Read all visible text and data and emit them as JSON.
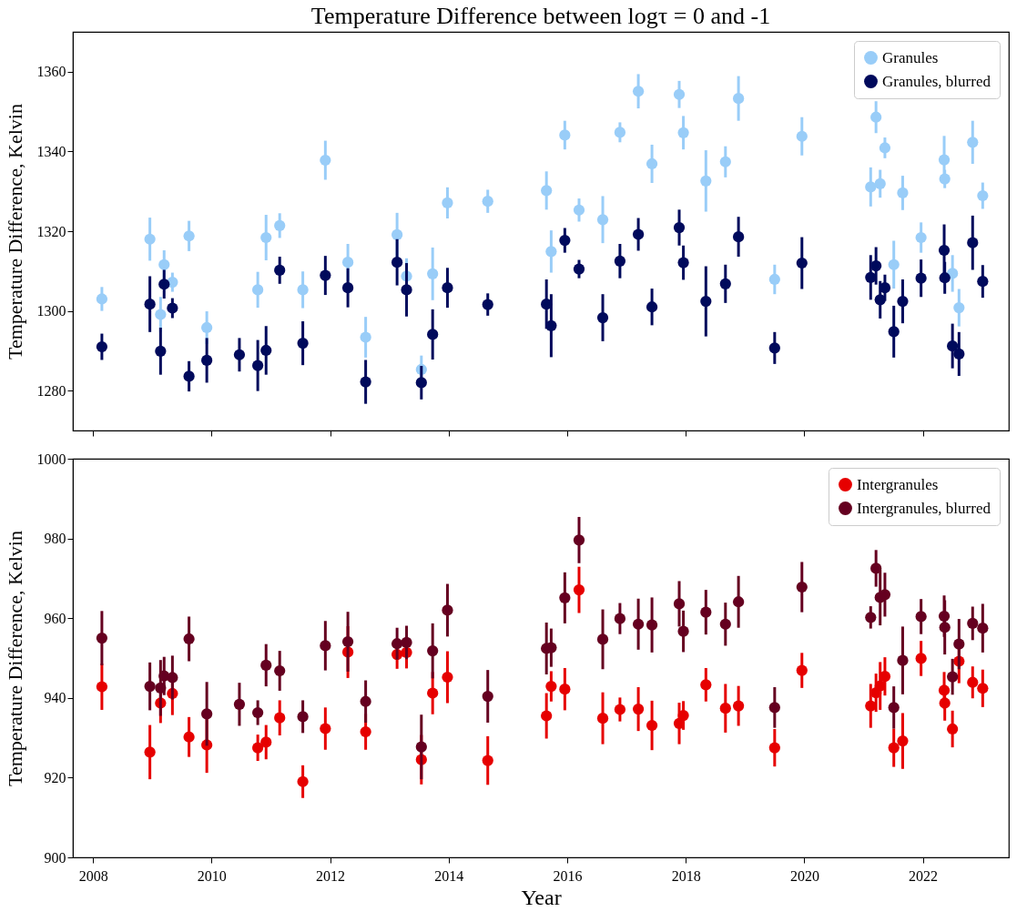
{
  "chart_data": [
    {
      "type": "scatter",
      "title": "Temperature Difference between logτ = 0 and -1",
      "ylabel": "Temperature Difference, Kelvin",
      "xlim": [
        2007.66,
        2023.45
      ],
      "xticks": [
        2008,
        2010,
        2012,
        2014,
        2016,
        2018,
        2020,
        2022
      ],
      "ylim": [
        1270,
        1370
      ],
      "yticks": [
        1280,
        1300,
        1320,
        1340,
        1360
      ],
      "tick_labels": "y",
      "grid": false,
      "legend": "top right",
      "marker": "circle",
      "series": [
        {
          "name": "Granules",
          "color": "#99cdf8",
          "x": [
            2008.15,
            2008.96,
            2009.14,
            2009.2,
            2009.34,
            2009.62,
            2009.92,
            2010.78,
            2010.92,
            2011.15,
            2011.54,
            2011.92,
            2012.3,
            2012.6,
            2013.13,
            2013.29,
            2013.54,
            2013.73,
            2013.98,
            2014.66,
            2015.65,
            2015.73,
            2015.96,
            2016.2,
            2016.6,
            2016.89,
            2017.2,
            2017.43,
            2017.89,
            2017.96,
            2018.34,
            2018.67,
            2018.89,
            2019.5,
            2019.96,
            2021.12,
            2021.21,
            2021.28,
            2021.36,
            2021.51,
            2021.66,
            2021.97,
            2022.36,
            2022.37,
            2022.5,
            2022.61,
            2022.84,
            2023.01
          ],
          "values": [
            1303,
            1318,
            1299.1,
            1311.6,
            1307.2,
            1318.8,
            1295.8,
            1305.3,
            1318.4,
            1321.4,
            1305.3,
            1337.8,
            1312.2,
            1293.4,
            1319.1,
            1308.7,
            1285.3,
            1309.3,
            1327.1,
            1327.5,
            1330.2,
            1314.9,
            1344.1,
            1325.3,
            1322.9,
            1344.8,
            1355.1,
            1336.9,
            1354.3,
            1344.7,
            1332.6,
            1337.4,
            1353.3,
            1307.9,
            1343.8,
            1331.1,
            1348.6,
            1331.9,
            1340.9,
            1311.6,
            1329.6,
            1318.4,
            1337.9,
            1333.1,
            1309.4,
            1300.8,
            1342.3,
            1328.9
          ],
          "errors": [
            3,
            5.4,
            4.4,
            3.6,
            2.4,
            3.8,
            4.1,
            4.5,
            5.7,
            3.1,
            4.6,
            4.9,
            4.6,
            5.1,
            5.5,
            4.5,
            3.5,
            6.6,
            3.9,
            2.9,
            4.8,
            5.3,
            3.6,
            2.9,
            5.9,
            2.5,
            4.3,
            4.8,
            3.4,
            4.2,
            7.7,
            3.9,
            5.6,
            3.7,
            4.8,
            4.9,
            4,
            3.5,
            2.6,
            6,
            4.3,
            3.8,
            6,
            2.3,
            4.6,
            4.7,
            5.4,
            3.3
          ]
        },
        {
          "name": "Granules, blurred",
          "color": "#000a5c",
          "x": [
            2008.15,
            2008.96,
            2009.14,
            2009.2,
            2009.34,
            2009.62,
            2009.92,
            2010.47,
            2010.78,
            2010.92,
            2011.15,
            2011.54,
            2011.92,
            2012.3,
            2012.6,
            2013.13,
            2013.29,
            2013.54,
            2013.73,
            2013.98,
            2014.66,
            2015.65,
            2015.73,
            2015.96,
            2016.2,
            2016.6,
            2016.89,
            2017.2,
            2017.43,
            2017.89,
            2017.96,
            2018.34,
            2018.67,
            2018.89,
            2019.5,
            2019.96,
            2021.12,
            2021.21,
            2021.28,
            2021.36,
            2021.51,
            2021.66,
            2021.97,
            2022.36,
            2022.37,
            2022.5,
            2022.61,
            2022.84,
            2023.01
          ],
          "values": [
            1291,
            1301.7,
            1289.9,
            1306.7,
            1300.7,
            1283.6,
            1287.6,
            1289,
            1286.3,
            1290.1,
            1310.2,
            1291.9,
            1308.9,
            1305.8,
            1282.2,
            1312.2,
            1305.3,
            1282,
            1294.1,
            1305.8,
            1301.6,
            1301.7,
            1296.3,
            1317.7,
            1310.5,
            1298.3,
            1312.5,
            1319.2,
            1301,
            1320.9,
            1312.1,
            1302.4,
            1306.8,
            1318.6,
            1290.7,
            1312,
            1308.4,
            1311.3,
            1302.8,
            1305.8,
            1294.8,
            1302.4,
            1308.2,
            1315.2,
            1308.3,
            1291.2,
            1289.2,
            1317.1,
            1307.4
          ],
          "errors": [
            3.3,
            7,
            5.9,
            3.6,
            2.5,
            3.8,
            5.6,
            4.2,
            6.4,
            6.1,
            3.4,
            5.5,
            4.9,
            4.9,
            5.5,
            5.8,
            6.7,
            4.2,
            6.3,
            5,
            2.8,
            6.2,
            7.9,
            3.1,
            2.3,
            5.9,
            4.3,
            4.1,
            4.6,
            4.5,
            4.3,
            8.8,
            4.8,
            5,
            4,
            6.5,
            5.6,
            4.7,
            4.7,
            3.3,
            6.5,
            5.5,
            4.7,
            6.5,
            4,
            5.6,
            5.5,
            6.8,
            4.1
          ]
        }
      ]
    },
    {
      "type": "scatter",
      "xlabel": "Year",
      "ylabel": "Temperature Difference, Kelvin",
      "xlim": [
        2007.66,
        2023.45
      ],
      "xticks": [
        2008,
        2010,
        2012,
        2014,
        2016,
        2018,
        2020,
        2022
      ],
      "ylim": [
        900,
        1000
      ],
      "yticks": [
        900,
        920,
        940,
        960,
        980,
        1000
      ],
      "grid": false,
      "legend": "top right",
      "marker": "circle",
      "series": [
        {
          "name": "Intergranules",
          "color": "#e60000",
          "x": [
            2008.15,
            2008.96,
            2009.14,
            2009.2,
            2009.34,
            2009.62,
            2009.92,
            2010.78,
            2010.92,
            2011.15,
            2011.54,
            2011.92,
            2012.3,
            2012.6,
            2013.13,
            2013.29,
            2013.54,
            2013.73,
            2013.98,
            2014.66,
            2015.65,
            2015.73,
            2015.96,
            2016.2,
            2016.6,
            2016.89,
            2017.2,
            2017.43,
            2017.89,
            2017.96,
            2018.34,
            2018.67,
            2018.89,
            2019.5,
            2019.96,
            2021.12,
            2021.21,
            2021.28,
            2021.36,
            2021.51,
            2021.66,
            2021.97,
            2022.36,
            2022.37,
            2022.5,
            2022.61,
            2022.84,
            2023.01
          ],
          "values": [
            942.8,
            926.4,
            938.7,
            null,
            941.1,
            930.2,
            928.2,
            927.5,
            928.9,
            935,
            919,
            932.3,
            951.5,
            931.5,
            950.9,
            951.4,
            924.5,
            941.2,
            945.2,
            924.3,
            935.5,
            942.9,
            942.2,
            967.1,
            934.9,
            937.1,
            937.2,
            933.1,
            933.6,
            935.6,
            943.3,
            937.4,
            938,
            927.5,
            946.9,
            938,
            941.3,
            943,
            945.4,
            927.5,
            929.2,
            949.9,
            941.9,
            938.7,
            932.2,
            949.2,
            943.9,
            942.4
          ],
          "errors": [
            5.8,
            6.8,
            5,
            null,
            5.4,
            5,
            7,
            3.3,
            4.3,
            4.4,
            4.1,
            5.3,
            6.5,
            4.5,
            3.6,
            4,
            6.2,
            5.3,
            6.5,
            6.1,
            5.7,
            3.8,
            5.3,
            5.8,
            6.5,
            3,
            5.5,
            6.2,
            5.2,
            3.6,
            4.2,
            6.1,
            5,
            4.7,
            4.4,
            5.5,
            4.8,
            6,
            4.8,
            4.8,
            7,
            4.4,
            4.6,
            4.4,
            4.6,
            5.5,
            4,
            4.7
          ]
        },
        {
          "name": "Intergranules, blurred",
          "color": "#650020",
          "x": [
            2008.15,
            2008.96,
            2009.14,
            2009.2,
            2009.34,
            2009.62,
            2009.92,
            2010.47,
            2010.78,
            2010.92,
            2011.15,
            2011.54,
            2011.92,
            2012.3,
            2012.6,
            2013.13,
            2013.29,
            2013.54,
            2013.73,
            2013.98,
            2014.66,
            2015.65,
            2015.73,
            2015.96,
            2016.2,
            2016.6,
            2016.89,
            2017.2,
            2017.43,
            2017.89,
            2017.96,
            2018.34,
            2018.67,
            2018.89,
            2019.5,
            2019.96,
            2021.12,
            2021.21,
            2021.28,
            2021.36,
            2021.51,
            2021.66,
            2021.97,
            2022.36,
            2022.37,
            2022.5,
            2022.61,
            2022.84,
            2023.01
          ],
          "values": [
            955,
            942.9,
            942.5,
            945.5,
            945.1,
            954.8,
            936,
            938.4,
            936.3,
            948.2,
            946.8,
            935.3,
            953.1,
            954.1,
            939.1,
            953.6,
            953.9,
            927.7,
            951.8,
            962,
            940.4,
            952.4,
            952.6,
            965.1,
            979.6,
            954.7,
            959.9,
            958.5,
            958.3,
            963.6,
            956.7,
            961.5,
            958.5,
            964.1,
            937.6,
            967.8,
            960.2,
            972.5,
            965.2,
            965.9,
            937.6,
            949.4,
            960.4,
            960.5,
            957.7,
            945.3,
            953.5,
            958.7,
            957.5
          ],
          "errors": [
            6.8,
            6,
            7,
            4.8,
            5.5,
            5.6,
            8,
            5.4,
            3.1,
            5.3,
            5,
            4.1,
            6.2,
            7.5,
            5.3,
            4,
            4.2,
            8.1,
            6.9,
            6.6,
            6.6,
            6.5,
            4.8,
            6.4,
            5.8,
            7.5,
            3.9,
            6.4,
            6.9,
            5.7,
            5.2,
            5.6,
            5.4,
            6.5,
            5.1,
            6.3,
            2.8,
            4.6,
            7,
            5.5,
            5.3,
            8.5,
            4.4,
            5.2,
            6.8,
            4.5,
            6.3,
            4.2,
            6.1
          ]
        }
      ]
    }
  ]
}
